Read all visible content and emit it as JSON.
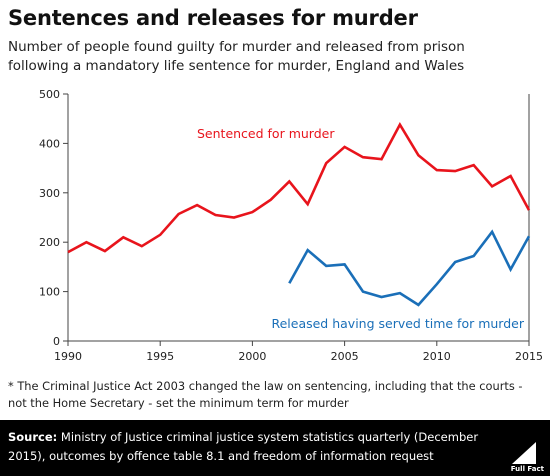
{
  "title": "Sentences and releases for murder",
  "subtitle": [
    "Number of people found guilty for murder and released from prison",
    "following a mandatory life sentence for murder, England and Wales"
  ],
  "footnote": "* The Criminal Justice Act 2003 changed the law on sentencing, including that the courts - not the Home Secretary - set the minimum term for murder",
  "source_label": "Source:",
  "source_text": "Ministry of Justice criminal justice system statistics quarterly (December 2015), outcomes by offence table 8.1 and freedom of information request",
  "logo_text": "Full Fact",
  "colors": {
    "sentenced": "#e8141c",
    "released": "#1a6fb8",
    "axis": "#444444",
    "footer_bg": "#000000"
  },
  "chart_data": {
    "type": "line",
    "x_ticks": [
      1990,
      1995,
      2000,
      2005,
      2010,
      2015
    ],
    "y_ticks": [
      0,
      100,
      200,
      300,
      400,
      500
    ],
    "xlim": [
      1990,
      2015
    ],
    "ylim": [
      0,
      500
    ],
    "grid": false,
    "series": [
      {
        "name": "Sentenced for murder",
        "color": "#e8141c",
        "x": [
          1990,
          1991,
          1992,
          1993,
          1994,
          1995,
          1996,
          1997,
          1998,
          1999,
          2000,
          2001,
          2002,
          2003,
          2004,
          2005,
          2006,
          2007,
          2008,
          2009,
          2010,
          2011,
          2012,
          2013,
          2014,
          2015
        ],
        "values": [
          180,
          200,
          182,
          210,
          192,
          215,
          257,
          275,
          255,
          250,
          261,
          286,
          323,
          277,
          360,
          393,
          372,
          368,
          438,
          376,
          346,
          344,
          356,
          313,
          334,
          265
        ]
      },
      {
        "name": "Released having served time for murder",
        "color": "#1a6fb8",
        "x": [
          2002,
          2003,
          2004,
          2005,
          2006,
          2007,
          2008,
          2009,
          2010,
          2011,
          2012,
          2013,
          2014,
          2015
        ],
        "values": [
          117,
          184,
          152,
          155,
          100,
          89,
          97,
          73,
          115,
          160,
          172,
          221,
          145,
          212
        ]
      }
    ]
  }
}
